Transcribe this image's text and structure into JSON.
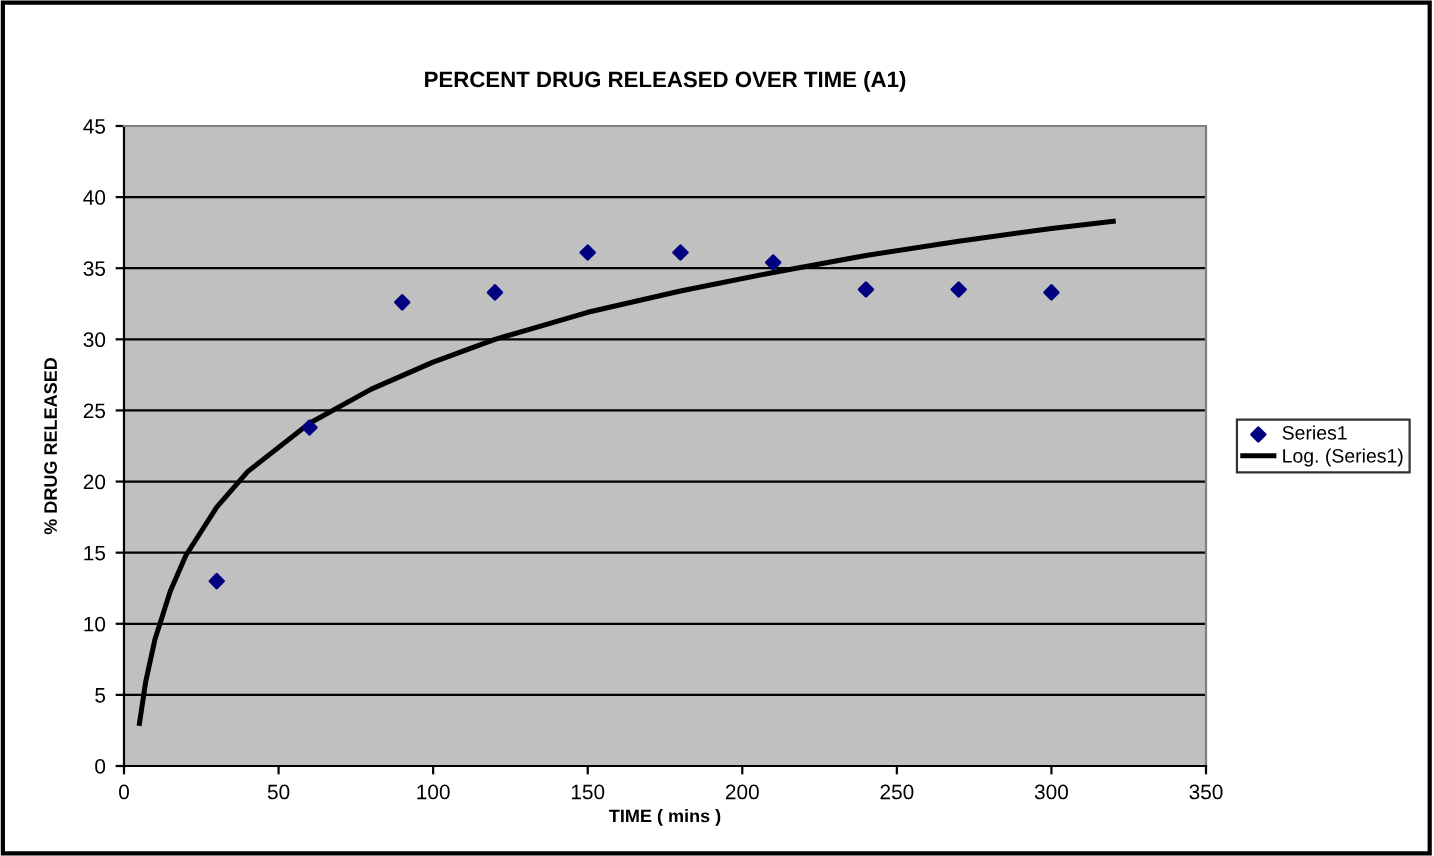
{
  "chart_data": {
    "type": "scatter",
    "title": "PERCENT DRUG RELEASED OVER TIME (A1)",
    "xlabel": "TIME ( mins )",
    "ylabel": "% DRUG RELEASED",
    "series": [
      {
        "name": "Series1",
        "color": "#000080",
        "marker": "diamond",
        "x": [
          30,
          60,
          90,
          120,
          150,
          180,
          210,
          240,
          270,
          300
        ],
        "values": [
          13.0,
          23.8,
          32.6,
          33.3,
          36.1,
          36.1,
          35.4,
          33.5,
          33.5,
          33.3
        ]
      },
      {
        "name": "Log. (Series1)",
        "type": "line",
        "color": "#000000",
        "x": [
          5,
          7,
          10,
          15,
          20,
          30,
          40,
          60,
          80,
          100,
          120,
          150,
          180,
          210,
          240,
          270,
          300,
          320
        ],
        "values": [
          3.0,
          5.9,
          8.9,
          12.3,
          14.8,
          18.2,
          20.7,
          24.1,
          26.5,
          28.4,
          30.0,
          31.9,
          33.4,
          34.7,
          35.9,
          36.9,
          37.8,
          38.3
        ]
      }
    ],
    "xlim": [
      0,
      350
    ],
    "xticks": [
      0,
      50,
      100,
      150,
      200,
      250,
      300,
      350
    ],
    "ylim": [
      0,
      45
    ],
    "yticks": [
      0,
      5,
      10,
      15,
      20,
      25,
      30,
      35,
      40,
      45
    ],
    "grid": "y",
    "legend": "right"
  }
}
